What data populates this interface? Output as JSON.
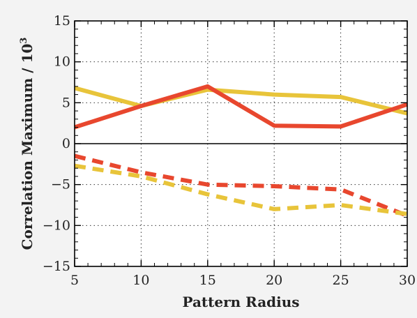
{
  "chart_data": {
    "type": "line",
    "title": "",
    "xlabel": "Pattern Radius",
    "ylabel_main": "Correlation Maximum / 10",
    "ylabel_exponent": "3",
    "xlim": [
      5,
      30
    ],
    "ylim": [
      -15,
      15
    ],
    "xticks": [
      5,
      10,
      15,
      20,
      25,
      30
    ],
    "yticks": [
      15,
      10,
      5,
      0,
      -5,
      -10,
      -15
    ],
    "ytick_labels": [
      "15",
      "10",
      "5",
      "0",
      "−5",
      "−10",
      "−15"
    ],
    "grid": true,
    "zero_line": true,
    "series": [
      {
        "color": "#e8c43a",
        "style": "solid",
        "x": [
          5,
          10,
          15,
          20,
          25,
          30
        ],
        "y": [
          6.8,
          4.6,
          6.6,
          6.0,
          5.7,
          3.7
        ]
      },
      {
        "color": "#e8472e",
        "style": "solid",
        "x": [
          5,
          10,
          15,
          20,
          25,
          30
        ],
        "y": [
          2.0,
          4.6,
          7.0,
          2.2,
          2.1,
          4.8
        ]
      },
      {
        "color": "#e8472e",
        "style": "dashed",
        "x": [
          5,
          10,
          15,
          20,
          25,
          30
        ],
        "y": [
          -1.5,
          -3.5,
          -5.0,
          -5.2,
          -5.6,
          -8.8
        ]
      },
      {
        "color": "#e8c43a",
        "style": "dashed",
        "x": [
          5,
          10,
          15,
          20,
          25,
          30
        ],
        "y": [
          -2.7,
          -4.0,
          -6.2,
          -8.0,
          -7.5,
          -8.6
        ]
      }
    ]
  }
}
